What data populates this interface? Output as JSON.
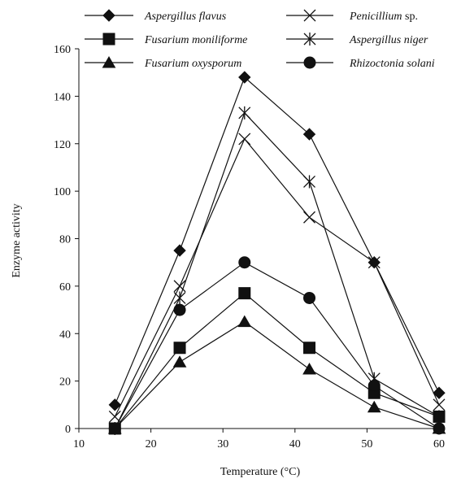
{
  "chart_data": {
    "type": "line",
    "title": "",
    "xlabel": "Temperature (°C)",
    "ylabel": "Enzyme activity",
    "xlim": [
      10,
      60
    ],
    "ylim": [
      0,
      160
    ],
    "xticks": [
      10,
      20,
      30,
      40,
      50,
      60
    ],
    "yticks": [
      0,
      20,
      40,
      60,
      80,
      100,
      120,
      140,
      160
    ],
    "grid": false,
    "legend_position": "top",
    "x": [
      15,
      24,
      33,
      42,
      51,
      60
    ],
    "series": [
      {
        "name": "Aspergillus flavus",
        "suffix": "",
        "marker": "diamond",
        "values": [
          10,
          75,
          148,
          124,
          70,
          15
        ]
      },
      {
        "name": "Fusarium moniliforme",
        "suffix": "",
        "marker": "square",
        "values": [
          0,
          34,
          57,
          34,
          15,
          5
        ]
      },
      {
        "name": "Fusarium oxysporum",
        "suffix": "",
        "marker": "triangle",
        "values": [
          0,
          28,
          45,
          25,
          9,
          0
        ]
      },
      {
        "name": "Penicillium",
        "suffix": " sp.",
        "marker": "x",
        "values": [
          5,
          60,
          122,
          89,
          70,
          10
        ]
      },
      {
        "name": "Aspergillus niger",
        "suffix": "",
        "marker": "star",
        "values": [
          0,
          55,
          133,
          104,
          21,
          5
        ]
      },
      {
        "name": "Rhizoctonia solani",
        "suffix": "",
        "marker": "circle",
        "values": [
          0,
          50,
          70,
          55,
          18,
          0
        ]
      }
    ]
  }
}
